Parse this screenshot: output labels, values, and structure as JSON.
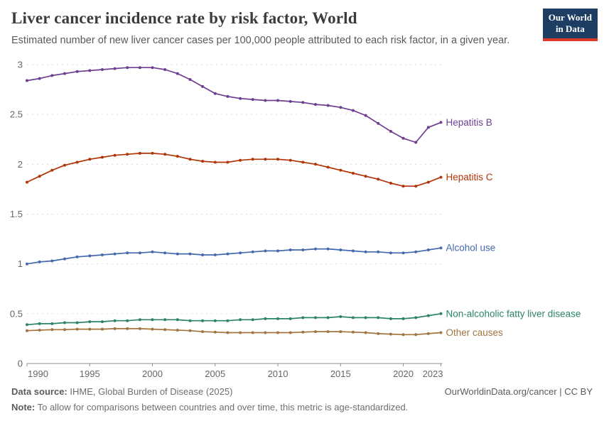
{
  "header": {
    "title": "Liver cancer incidence rate by risk factor, World",
    "subtitle": "Estimated number of new liver cancer cases per 100,000 people attributed to each risk factor, in a given year.",
    "logo": {
      "line1": "Our World",
      "line2": "in Data",
      "bg_color": "#1d3d63",
      "accent_color": "#dc3a2a"
    }
  },
  "chart_data": {
    "type": "line",
    "title": "Liver cancer incidence rate by risk factor, World",
    "xlabel": "",
    "ylabel": "",
    "xlim": [
      1990,
      2023
    ],
    "ylim": [
      0,
      3
    ],
    "xticks": [
      1990,
      1995,
      2000,
      2005,
      2010,
      2015,
      2020,
      2023
    ],
    "yticks": [
      0,
      0.5,
      1,
      1.5,
      2,
      2.5,
      3
    ],
    "grid": "horizontal-dashed",
    "legend_position": "right-end-of-lines",
    "x": [
      1990,
      1991,
      1992,
      1993,
      1994,
      1995,
      1996,
      1997,
      1998,
      1999,
      2000,
      2001,
      2002,
      2003,
      2004,
      2005,
      2006,
      2007,
      2008,
      2009,
      2010,
      2011,
      2012,
      2013,
      2014,
      2015,
      2016,
      2017,
      2018,
      2019,
      2020,
      2021,
      2022,
      2023
    ],
    "series": [
      {
        "name": "Hepatitis B",
        "color": "#6d3e91",
        "values": [
          2.84,
          2.86,
          2.89,
          2.91,
          2.93,
          2.94,
          2.95,
          2.96,
          2.97,
          2.97,
          2.97,
          2.95,
          2.91,
          2.85,
          2.78,
          2.71,
          2.68,
          2.66,
          2.65,
          2.64,
          2.64,
          2.63,
          2.62,
          2.6,
          2.59,
          2.57,
          2.54,
          2.49,
          2.41,
          2.33,
          2.26,
          2.22,
          2.37,
          2.42
        ]
      },
      {
        "name": "Hepatitis C",
        "color": "#b13507",
        "values": [
          1.82,
          1.88,
          1.94,
          1.99,
          2.02,
          2.05,
          2.07,
          2.09,
          2.1,
          2.11,
          2.11,
          2.1,
          2.08,
          2.05,
          2.03,
          2.02,
          2.02,
          2.04,
          2.05,
          2.05,
          2.05,
          2.04,
          2.02,
          2.0,
          1.97,
          1.94,
          1.91,
          1.88,
          1.85,
          1.81,
          1.78,
          1.78,
          1.82,
          1.87
        ]
      },
      {
        "name": "Alcohol use",
        "color": "#4569ae",
        "values": [
          1.0,
          1.02,
          1.03,
          1.05,
          1.07,
          1.08,
          1.09,
          1.1,
          1.11,
          1.11,
          1.12,
          1.11,
          1.1,
          1.1,
          1.09,
          1.09,
          1.1,
          1.11,
          1.12,
          1.13,
          1.13,
          1.14,
          1.14,
          1.15,
          1.15,
          1.14,
          1.13,
          1.12,
          1.12,
          1.11,
          1.11,
          1.12,
          1.14,
          1.16
        ]
      },
      {
        "name": "Non-alcoholic fatty liver disease",
        "color": "#2c8465",
        "values": [
          0.39,
          0.4,
          0.4,
          0.41,
          0.41,
          0.42,
          0.42,
          0.43,
          0.43,
          0.44,
          0.44,
          0.44,
          0.44,
          0.43,
          0.43,
          0.43,
          0.43,
          0.44,
          0.44,
          0.45,
          0.45,
          0.45,
          0.46,
          0.46,
          0.46,
          0.47,
          0.46,
          0.46,
          0.46,
          0.45,
          0.45,
          0.46,
          0.48,
          0.5
        ]
      },
      {
        "name": "Other causes",
        "color": "#a2753f",
        "values": [
          0.33,
          0.335,
          0.34,
          0.34,
          0.345,
          0.345,
          0.345,
          0.35,
          0.35,
          0.35,
          0.345,
          0.34,
          0.335,
          0.33,
          0.32,
          0.315,
          0.31,
          0.31,
          0.31,
          0.31,
          0.31,
          0.31,
          0.315,
          0.32,
          0.32,
          0.32,
          0.315,
          0.31,
          0.3,
          0.295,
          0.29,
          0.29,
          0.3,
          0.31
        ]
      }
    ]
  },
  "footer": {
    "data_source_label": "Data source:",
    "data_source": "IHME, Global Burden of Disease (2025)",
    "note_label": "Note:",
    "note": "To allow for comparisons between countries and over time, this metric is age-standardized.",
    "link": "OurWorldinData.org/cancer | CC BY"
  }
}
